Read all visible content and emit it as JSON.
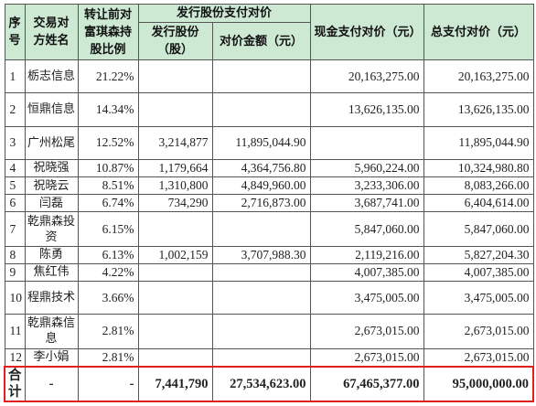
{
  "header": {
    "seq": "序号",
    "party": "交易对方姓名",
    "ratio": "转让前对富琪森持股比例",
    "share_pay_group": "发行股份支付对价",
    "shares_issued": "发行股份（股）",
    "share_amount": "对价金额（元）",
    "cash": "现金支付对价（元）",
    "total": "总支付对价（元）"
  },
  "rows": [
    {
      "seq": "1",
      "name": "栃志信息",
      "ratio": "21.22%",
      "shares": "",
      "share_amount": "",
      "cash": "20,163,275.00",
      "total": "20,163,275.00"
    },
    {
      "seq": "2",
      "name": "恒鼎信息",
      "ratio": "14.34%",
      "shares": "",
      "share_amount": "",
      "cash": "13,626,135.00",
      "total": "13,626,135.00"
    },
    {
      "seq": "3",
      "name": "广州松尾",
      "ratio": "12.52%",
      "shares": "3,214,877",
      "share_amount": "11,895,044.90",
      "cash": "",
      "total": "11,895,044.90"
    },
    {
      "seq": "4",
      "name": "祝晓强",
      "ratio": "10.87%",
      "shares": "1,179,664",
      "share_amount": "4,364,756.80",
      "cash": "5,960,224.00",
      "total": "10,324,980.80"
    },
    {
      "seq": "5",
      "name": "祝晓云",
      "ratio": "8.51%",
      "shares": "1,310,800",
      "share_amount": "4,849,960.00",
      "cash": "3,233,306.00",
      "total": "8,083,266.00"
    },
    {
      "seq": "6",
      "name": "闫磊",
      "ratio": "6.74%",
      "shares": "734,290",
      "share_amount": "2,716,873.00",
      "cash": "3,687,741.00",
      "total": "6,404,614.00"
    },
    {
      "seq": "7",
      "name": "乾鼎森投资",
      "ratio": "6.15%",
      "shares": "",
      "share_amount": "",
      "cash": "5,847,060.00",
      "total": "5,847,060.00"
    },
    {
      "seq": "8",
      "name": "陈勇",
      "ratio": "6.13%",
      "shares": "1,002,159",
      "share_amount": "3,707,988.30",
      "cash": "2,119,216.00",
      "total": "5,827,204.30"
    },
    {
      "seq": "9",
      "name": "焦红伟",
      "ratio": "4.22%",
      "shares": "",
      "share_amount": "",
      "cash": "4,007,385.00",
      "total": "4,007,385.00"
    },
    {
      "seq": "10",
      "name": "程鼎技术",
      "ratio": "3.66%",
      "shares": "",
      "share_amount": "",
      "cash": "3,475,005.00",
      "total": "3,475,005.00"
    },
    {
      "seq": "11",
      "name": "乾鼎森信息",
      "ratio": "2.81%",
      "shares": "",
      "share_amount": "",
      "cash": "2,673,015.00",
      "total": "2,673,015.00"
    },
    {
      "seq": "12",
      "name": "李小娟",
      "ratio": "2.81%",
      "shares": "",
      "share_amount": "",
      "cash": "2,673,015.00",
      "total": "2,673,015.00"
    }
  ],
  "total_row": {
    "label": "合计",
    "name": "-",
    "ratio": "-",
    "shares": "7,441,790",
    "share_amount": "27,534,623.00",
    "cash": "67,465,377.00",
    "total": "95,000,000.00"
  },
  "colors": {
    "header_bg": "#cde9d3",
    "total_outline": "#e0201c"
  }
}
